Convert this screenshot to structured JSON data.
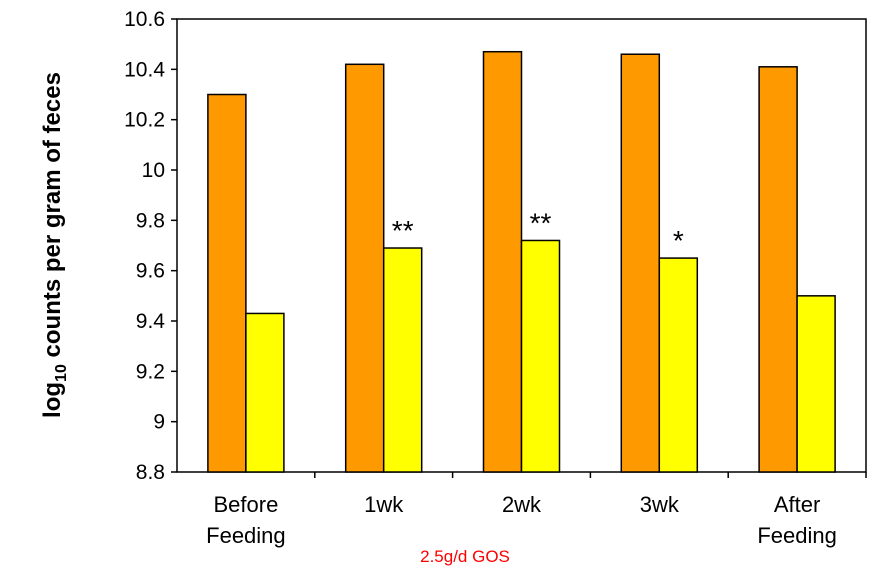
{
  "chart_data": {
    "type": "bar",
    "title": "",
    "xlabel": "",
    "ylabel_prefix": "log",
    "ylabel_subscript": "10",
    "ylabel_rest": " counts per gram of feces",
    "ylim": [
      8.8,
      10.6
    ],
    "yticks": [
      "8.8",
      "9",
      "9.2",
      "9.4",
      "9.6",
      "9.8",
      "10",
      "10.2",
      "10.4",
      "10.6"
    ],
    "categories": [
      [
        "Before",
        "Feeding"
      ],
      [
        "1wk"
      ],
      [
        "2wk"
      ],
      [
        "3wk"
      ],
      [
        "After",
        "Feeding"
      ]
    ],
    "series": [
      {
        "color": "#ff9900",
        "values": [
          10.3,
          10.42,
          10.47,
          10.46,
          10.41
        ]
      },
      {
        "color": "#ffff00",
        "values": [
          9.43,
          9.69,
          9.72,
          9.65,
          9.5
        ]
      }
    ],
    "annotations": [
      "",
      "**",
      "**",
      "*",
      ""
    ],
    "note": "2.5g/d  GOS",
    "note_color": "#ff0000",
    "grid": false,
    "legend": "none"
  }
}
